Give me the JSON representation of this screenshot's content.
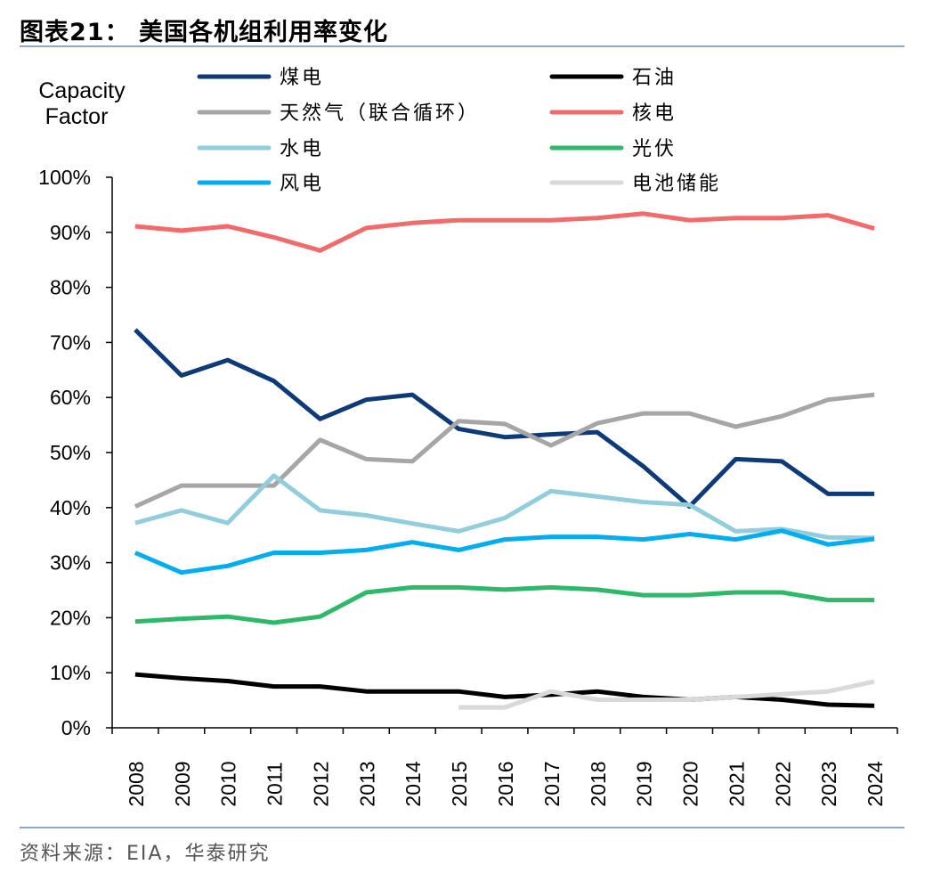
{
  "header": {
    "title": "图表21：  美国各机组利用率变化"
  },
  "footer": {
    "source": "资料来源：EIA，华泰研究"
  },
  "chart_data": {
    "type": "line",
    "title": "美国各机组利用率变化",
    "xlabel": "",
    "ylabel_line1": "Capacity",
    "ylabel_line2": "Factor",
    "ylim": [
      0,
      100
    ],
    "y_ticks": [
      {
        "value": 0,
        "label": "0%"
      },
      {
        "value": 10,
        "label": "10%"
      },
      {
        "value": 20,
        "label": "20%"
      },
      {
        "value": 30,
        "label": "30%"
      },
      {
        "value": 40,
        "label": "40%"
      },
      {
        "value": 50,
        "label": "50%"
      },
      {
        "value": 60,
        "label": "60%"
      },
      {
        "value": 70,
        "label": "70%"
      },
      {
        "value": 80,
        "label": "80%"
      },
      {
        "value": 90,
        "label": "90%"
      },
      {
        "value": 100,
        "label": "100%"
      }
    ],
    "categories": [
      "2008",
      "2009",
      "2010",
      "2011",
      "2012",
      "2013",
      "2014",
      "2015",
      "2016",
      "2017",
      "2018",
      "2019",
      "2020",
      "2021",
      "2022",
      "2023",
      "2024"
    ],
    "series": [
      {
        "name": "煤电",
        "color": "#0E3A78",
        "values": [
          72.3,
          64.0,
          66.8,
          63.0,
          56.1,
          59.6,
          60.5,
          54.3,
          52.8,
          53.3,
          53.7,
          47.5,
          40.2,
          48.8,
          48.4,
          42.5,
          42.5
        ]
      },
      {
        "name": "石油",
        "color": "#000000",
        "values": [
          9.7,
          9.0,
          8.5,
          7.5,
          7.5,
          6.6,
          6.6,
          6.6,
          5.6,
          6.0,
          6.6,
          5.6,
          5.1,
          5.6,
          5.1,
          4.2,
          4.0
        ]
      },
      {
        "name": "天然气（联合循环）",
        "color": "#A6A6A6",
        "values": [
          40.2,
          44.0,
          44.0,
          44.0,
          52.3,
          48.8,
          48.4,
          55.7,
          55.2,
          51.3,
          55.3,
          57.1,
          57.1,
          54.7,
          56.6,
          59.6,
          60.5
        ]
      },
      {
        "name": "核电",
        "color": "#F26B6B",
        "values": [
          91.1,
          90.3,
          91.1,
          89.1,
          86.7,
          90.8,
          91.7,
          92.2,
          92.2,
          92.2,
          92.6,
          93.4,
          92.2,
          92.6,
          92.6,
          93.1,
          90.7
        ]
      },
      {
        "name": "水电",
        "color": "#92CDDC",
        "values": [
          37.2,
          39.5,
          37.2,
          45.8,
          39.5,
          38.6,
          37.1,
          35.7,
          38.1,
          43.0,
          42.0,
          41.0,
          40.5,
          35.7,
          36.1,
          34.6,
          34.5
        ]
      },
      {
        "name": "光伏",
        "color": "#2DB86A",
        "values": [
          19.3,
          19.8,
          20.2,
          19.1,
          20.2,
          24.6,
          25.5,
          25.5,
          25.1,
          25.5,
          25.1,
          24.1,
          24.1,
          24.6,
          24.6,
          23.2,
          23.2
        ]
      },
      {
        "name": "风电",
        "color": "#00AEEF",
        "values": [
          31.8,
          28.2,
          29.4,
          31.8,
          31.8,
          32.3,
          33.7,
          32.3,
          34.2,
          34.7,
          34.7,
          34.2,
          35.2,
          34.2,
          35.8,
          33.3,
          34.3
        ]
      },
      {
        "name": "电池储能",
        "color": "#D9D9D9",
        "values": [
          null,
          null,
          null,
          null,
          null,
          null,
          null,
          3.7,
          3.7,
          6.6,
          5.1,
          5.1,
          5.1,
          5.6,
          6.1,
          6.6,
          8.4
        ]
      }
    ],
    "legend": {
      "placement": "top",
      "entries": [
        "煤电",
        "石油",
        "天然气（联合循环）",
        "核电",
        "水电",
        "光伏",
        "风电",
        "电池储能"
      ]
    },
    "grid": false
  }
}
